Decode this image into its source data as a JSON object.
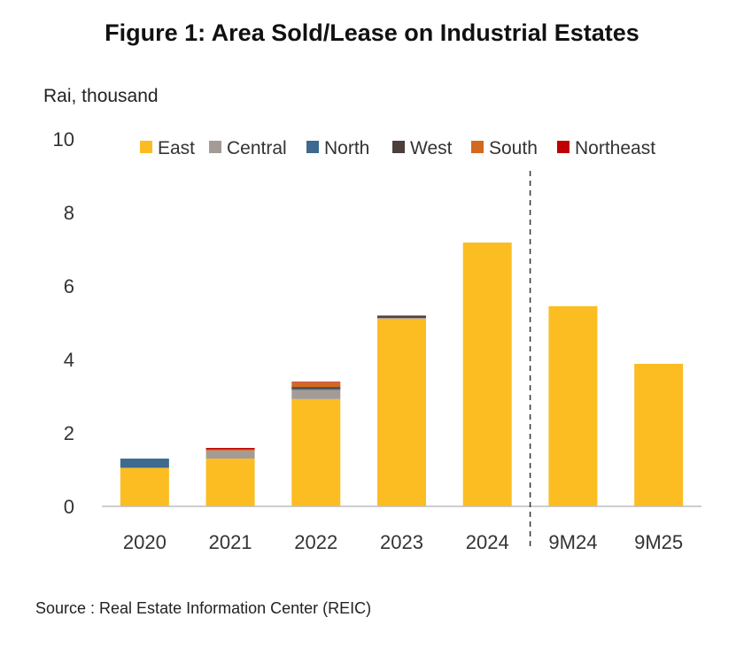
{
  "chart_data": {
    "type": "bar",
    "stacked": true,
    "title": "Figure 1: Area Sold/Lease on Industrial Estates",
    "ylabel": "Rai, thousand",
    "xlabel": "",
    "ylim": [
      0,
      10
    ],
    "yticks": [
      "0",
      "2",
      "4",
      "6",
      "8",
      "10"
    ],
    "categories": [
      "2020",
      "2021",
      "2022",
      "2023",
      "2024",
      "9M24",
      "9M25"
    ],
    "divider_after_category": "2024",
    "legend_position": "top",
    "grid": false,
    "series": [
      {
        "name": "East",
        "color": "#FBBD22",
        "values": [
          1.05,
          1.3,
          2.92,
          5.1,
          7.18,
          5.45,
          3.88
        ]
      },
      {
        "name": "Central",
        "color": "#A59B96",
        "values": [
          0.0,
          0.22,
          0.25,
          0.03,
          0.0,
          0.0,
          0.0
        ]
      },
      {
        "name": "North",
        "color": "#3D6A8E",
        "values": [
          0.25,
          0.0,
          0.03,
          0.0,
          0.0,
          0.0,
          0.0
        ]
      },
      {
        "name": "West",
        "color": "#4D3F3A",
        "values": [
          0.0,
          0.0,
          0.05,
          0.05,
          0.0,
          0.0,
          0.0
        ]
      },
      {
        "name": "South",
        "color": "#D2691E",
        "values": [
          0.0,
          0.03,
          0.12,
          0.02,
          0.0,
          0.0,
          0.0
        ]
      },
      {
        "name": "Northeast",
        "color": "#C00000",
        "values": [
          0.0,
          0.04,
          0.02,
          0.0,
          0.0,
          0.0,
          0.0
        ]
      }
    ]
  },
  "source": "Source : Real Estate Information Center (REIC)"
}
